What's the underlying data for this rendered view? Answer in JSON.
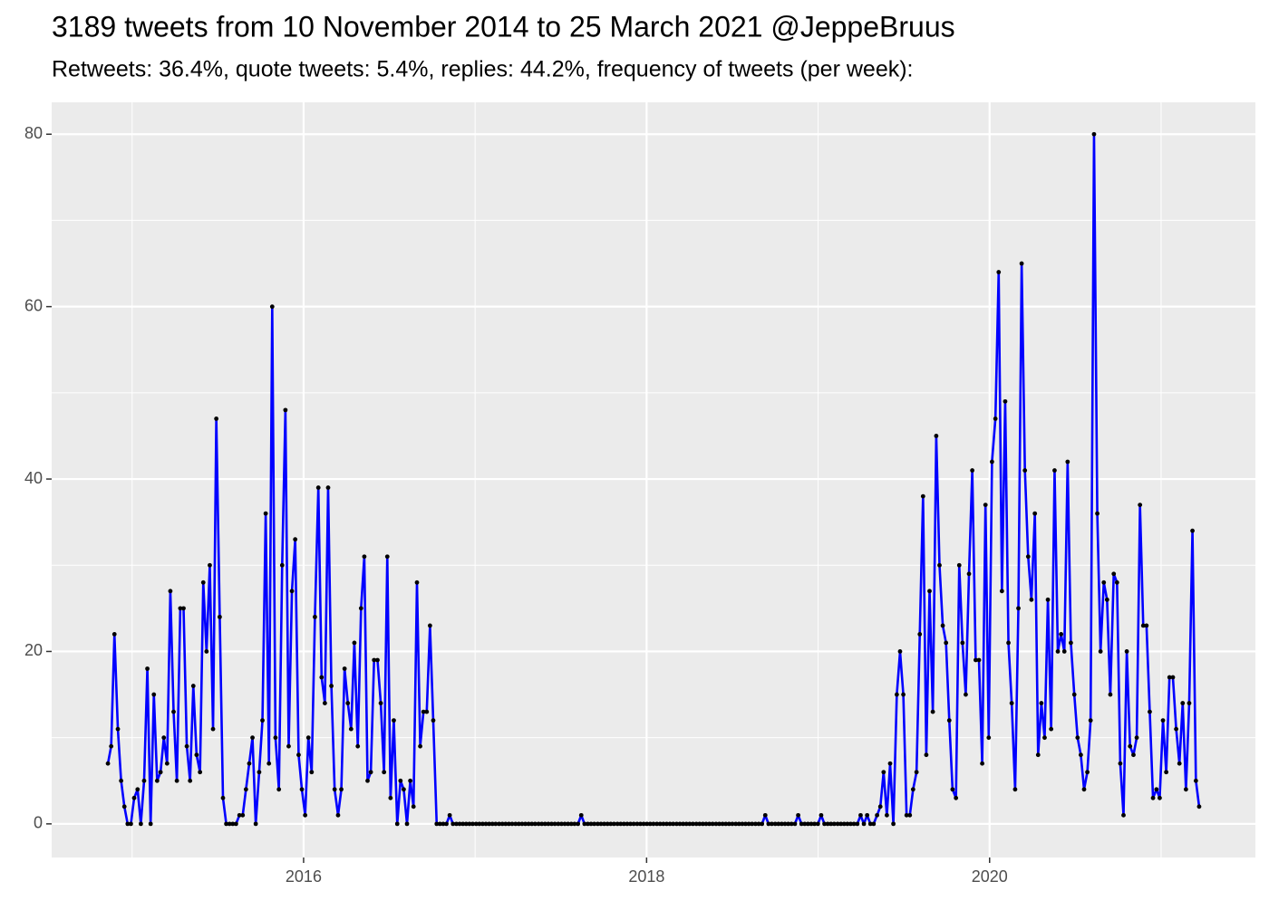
{
  "chart_data": {
    "type": "line",
    "title": "3189 tweets from 10 November 2014 to 25 March 2021 @JeppeBruus",
    "subtitle": "Retweets: 36.4%, quote tweets: 5.4%, replies: 44.2%, frequency of tweets (per week):",
    "color": "#0000ff",
    "point_color": "#000000",
    "panel_color": "#ebebeb",
    "grid": true,
    "xlim": [
      2014.531,
      2021.55
    ],
    "xticks": [
      2016,
      2018,
      2020
    ],
    "minor_xticks": [
      2015,
      2017,
      2019,
      2021
    ],
    "ylim": [
      -3.9,
      83.7
    ],
    "yticks": [
      0,
      20,
      40,
      60,
      80
    ],
    "minor_yticks": [
      10,
      30,
      50,
      70
    ],
    "x": [
      2014.859,
      2014.878,
      2014.897,
      2014.917,
      2014.936,
      2014.955,
      2014.974,
      2014.993,
      2015.012,
      2015.032,
      2015.051,
      2015.07,
      2015.089,
      2015.108,
      2015.127,
      2015.146,
      2015.166,
      2015.185,
      2015.204,
      2015.223,
      2015.242,
      2015.261,
      2015.281,
      2015.3,
      2015.319,
      2015.338,
      2015.357,
      2015.376,
      2015.396,
      2015.415,
      2015.434,
      2015.453,
      2015.472,
      2015.491,
      2015.511,
      2015.53,
      2015.549,
      2015.568,
      2015.587,
      2015.606,
      2015.626,
      2015.645,
      2015.664,
      2015.683,
      2015.702,
      2015.721,
      2015.741,
      2015.76,
      2015.779,
      2015.798,
      2015.817,
      2015.836,
      2015.856,
      2015.875,
      2015.894,
      2015.913,
      2015.932,
      2015.951,
      2015.971,
      2015.99,
      2016.009,
      2016.028,
      2016.047,
      2016.066,
      2016.086,
      2016.105,
      2016.124,
      2016.143,
      2016.162,
      2016.181,
      2016.201,
      2016.22,
      2016.239,
      2016.258,
      2016.277,
      2016.296,
      2016.316,
      2016.335,
      2016.354,
      2016.373,
      2016.392,
      2016.411,
      2016.431,
      2016.45,
      2016.469,
      2016.488,
      2016.507,
      2016.526,
      2016.546,
      2016.565,
      2016.584,
      2016.603,
      2016.622,
      2016.641,
      2016.661,
      2016.68,
      2016.699,
      2016.718,
      2016.737,
      2016.756,
      2016.776,
      2016.795,
      2016.814,
      2016.833,
      2016.852,
      2016.871,
      2016.891,
      2016.91,
      2016.929,
      2016.948,
      2016.967,
      2016.986,
      2017.006,
      2017.025,
      2017.044,
      2017.063,
      2017.082,
      2017.101,
      2017.12,
      2017.14,
      2017.159,
      2017.178,
      2017.197,
      2017.216,
      2017.236,
      2017.255,
      2017.274,
      2017.293,
      2017.312,
      2017.331,
      2017.35,
      2017.37,
      2017.389,
      2017.408,
      2017.427,
      2017.446,
      2017.465,
      2017.485,
      2017.504,
      2017.523,
      2017.542,
      2017.561,
      2017.58,
      2017.6,
      2017.619,
      2017.638,
      2017.657,
      2017.676,
      2017.695,
      2017.715,
      2017.734,
      2017.753,
      2017.772,
      2017.791,
      2017.81,
      2017.83,
      2017.849,
      2017.868,
      2017.887,
      2017.906,
      2017.925,
      2017.945,
      2017.964,
      2017.983,
      2018.002,
      2018.021,
      2018.04,
      2018.06,
      2018.079,
      2018.098,
      2018.117,
      2018.136,
      2018.155,
      2018.175,
      2018.194,
      2018.213,
      2018.232,
      2018.251,
      2018.27,
      2018.29,
      2018.309,
      2018.328,
      2018.347,
      2018.366,
      2018.385,
      2018.405,
      2018.424,
      2018.443,
      2018.462,
      2018.481,
      2018.5,
      2018.52,
      2018.539,
      2018.558,
      2018.577,
      2018.596,
      2018.615,
      2018.635,
      2018.654,
      2018.673,
      2018.692,
      2018.711,
      2018.73,
      2018.75,
      2018.769,
      2018.788,
      2018.807,
      2018.826,
      2018.845,
      2018.865,
      2018.884,
      2018.903,
      2018.922,
      2018.941,
      2018.96,
      2018.979,
      2018.999,
      2019.018,
      2019.037,
      2019.056,
      2019.075,
      2019.094,
      2019.114,
      2019.133,
      2019.152,
      2019.171,
      2019.19,
      2019.209,
      2019.229,
      2019.248,
      2019.267,
      2019.286,
      2019.305,
      2019.324,
      2019.344,
      2019.363,
      2019.382,
      2019.401,
      2019.42,
      2019.439,
      2019.459,
      2019.478,
      2019.497,
      2019.516,
      2019.535,
      2019.554,
      2019.574,
      2019.593,
      2019.612,
      2019.631,
      2019.65,
      2019.669,
      2019.689,
      2019.708,
      2019.727,
      2019.746,
      2019.765,
      2019.784,
      2019.804,
      2019.823,
      2019.842,
      2019.861,
      2019.88,
      2019.899,
      2019.919,
      2019.938,
      2019.957,
      2019.976,
      2019.995,
      2020.014,
      2020.034,
      2020.053,
      2020.072,
      2020.091,
      2020.11,
      2020.129,
      2020.149,
      2020.168,
      2020.187,
      2020.206,
      2020.225,
      2020.244,
      2020.264,
      2020.283,
      2020.302,
      2020.321,
      2020.34,
      2020.359,
      2020.379,
      2020.398,
      2020.417,
      2020.436,
      2020.455,
      2020.474,
      2020.494,
      2020.513,
      2020.532,
      2020.551,
      2020.57,
      2020.589,
      2020.609,
      2020.628,
      2020.647,
      2020.666,
      2020.685,
      2020.704,
      2020.724,
      2020.743,
      2020.762,
      2020.781,
      2020.8,
      2020.819,
      2020.839,
      2020.858,
      2020.877,
      2020.896,
      2020.915,
      2020.934,
      2020.953,
      2020.973,
      2020.992,
      2021.011,
      2021.03,
      2021.049,
      2021.069,
      2021.088,
      2021.107,
      2021.126,
      2021.145,
      2021.164,
      2021.183,
      2021.203,
      2021.222
    ],
    "values": [
      7,
      9,
      22,
      11,
      5,
      2,
      0,
      0,
      3,
      4,
      0,
      5,
      18,
      0,
      15,
      5,
      6,
      10,
      7,
      27,
      13,
      5,
      25,
      25,
      9,
      5,
      16,
      8,
      6,
      28,
      20,
      30,
      11,
      47,
      24,
      3,
      0,
      0,
      0,
      0,
      1,
      1,
      4,
      7,
      10,
      0,
      6,
      12,
      36,
      7,
      60,
      10,
      4,
      30,
      48,
      9,
      27,
      33,
      8,
      4,
      1,
      10,
      6,
      24,
      39,
      17,
      14,
      39,
      16,
      4,
      1,
      4,
      18,
      14,
      11,
      21,
      9,
      25,
      31,
      5,
      6,
      19,
      19,
      14,
      6,
      31,
      3,
      12,
      0,
      5,
      4,
      0,
      5,
      2,
      28,
      9,
      13,
      13,
      23,
      12,
      0,
      0,
      0,
      0,
      1,
      0,
      0,
      0,
      0,
      0,
      0,
      0,
      0,
      0,
      0,
      0,
      0,
      0,
      0,
      0,
      0,
      0,
      0,
      0,
      0,
      0,
      0,
      0,
      0,
      0,
      0,
      0,
      0,
      0,
      0,
      0,
      0,
      0,
      0,
      0,
      0,
      0,
      0,
      0,
      1,
      0,
      0,
      0,
      0,
      0,
      0,
      0,
      0,
      0,
      0,
      0,
      0,
      0,
      0,
      0,
      0,
      0,
      0,
      0,
      0,
      0,
      0,
      0,
      0,
      0,
      0,
      0,
      0,
      0,
      0,
      0,
      0,
      0,
      0,
      0,
      0,
      0,
      0,
      0,
      0,
      0,
      0,
      0,
      0,
      0,
      0,
      0,
      0,
      0,
      0,
      0,
      0,
      0,
      0,
      0,
      1,
      0,
      0,
      0,
      0,
      0,
      0,
      0,
      0,
      0,
      1,
      0,
      0,
      0,
      0,
      0,
      0,
      1,
      0,
      0,
      0,
      0,
      0,
      0,
      0,
      0,
      0,
      0,
      0,
      1,
      0,
      1,
      0,
      0,
      1,
      2,
      6,
      1,
      7,
      0,
      15,
      20,
      15,
      1,
      1,
      4,
      6,
      22,
      38,
      8,
      27,
      13,
      45,
      30,
      23,
      21,
      12,
      4,
      3,
      30,
      21,
      15,
      29,
      41,
      19,
      19,
      7,
      37,
      10,
      42,
      47,
      64,
      27,
      49,
      21,
      14,
      4,
      25,
      65,
      41,
      31,
      26,
      36,
      8,
      14,
      10,
      26,
      11,
      41,
      20,
      22,
      20,
      42,
      21,
      15,
      10,
      8,
      4,
      6,
      12,
      80,
      36,
      20,
      28,
      26,
      15,
      29,
      28,
      7,
      1,
      20,
      9,
      8,
      10,
      37,
      23,
      23,
      13,
      3,
      4,
      3,
      12,
      6,
      17,
      17,
      11,
      7,
      14,
      4,
      14,
      34,
      5,
      2
    ]
  }
}
